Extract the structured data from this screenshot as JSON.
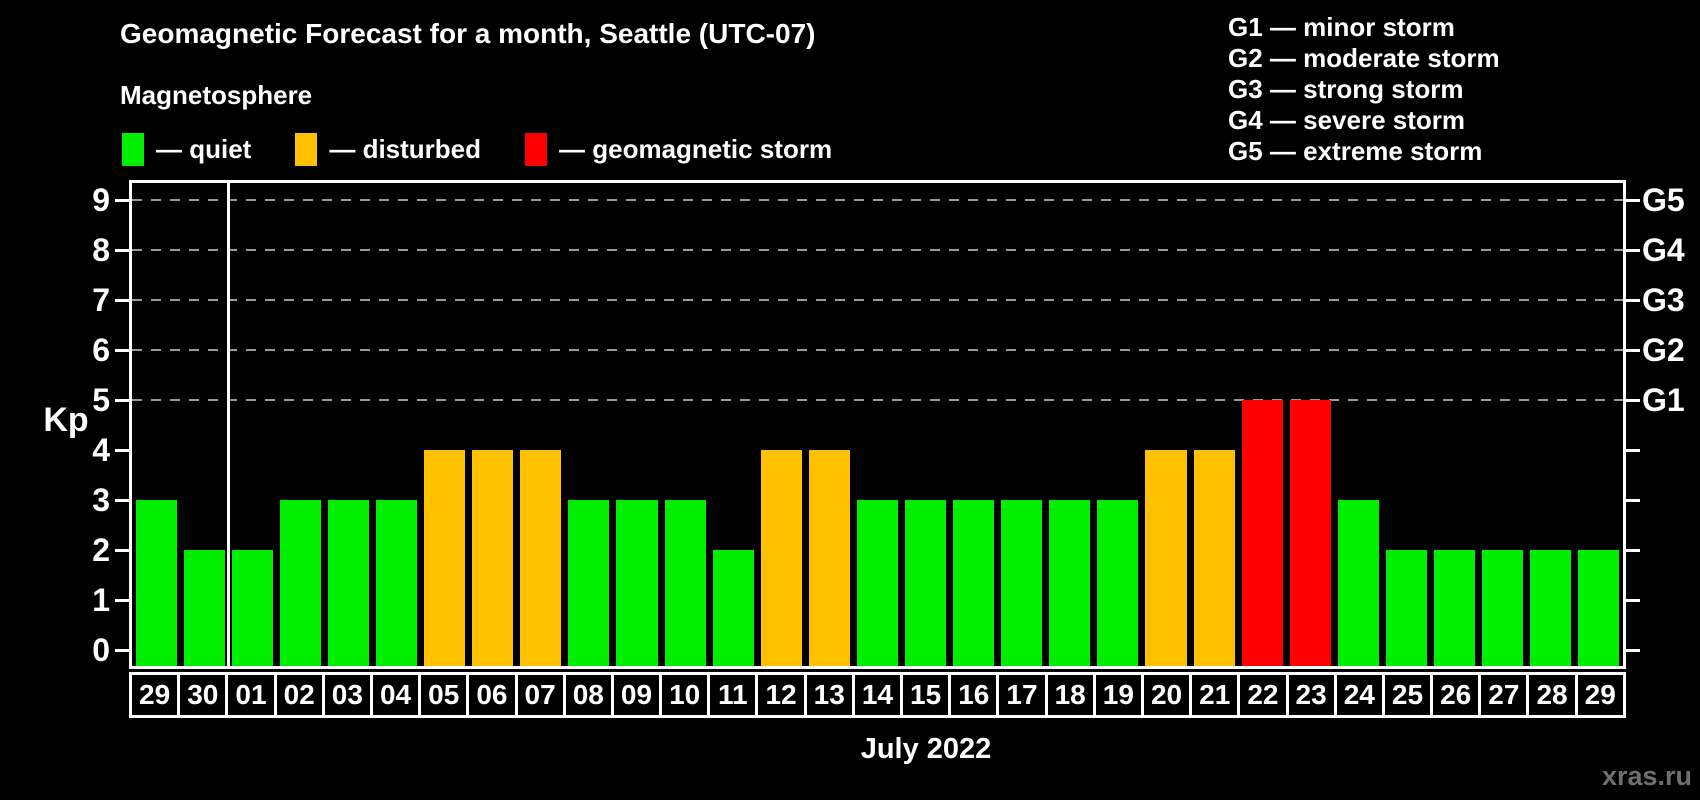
{
  "title": "Geomagnetic Forecast for a month, Seattle (UTC-07)",
  "subtitle": "Magnetosphere",
  "colors": {
    "quiet": "#00ee00",
    "disturbed": "#ffc000",
    "storm": "#ff0000",
    "background": "#000000",
    "axis": "#ffffff",
    "gridline": "#9a9a9a",
    "watermark_text": "#6f6f6f"
  },
  "legend": {
    "items": [
      {
        "key": "quiet",
        "label": "— quiet"
      },
      {
        "key": "disturbed",
        "label": "— disturbed"
      },
      {
        "key": "storm",
        "label": "— geomagnetic storm"
      }
    ]
  },
  "g_legend": [
    "G1 — minor storm",
    "G2 — moderate storm",
    "G3 — strong storm",
    "G4 — severe storm",
    "G5 — extreme storm"
  ],
  "axis": {
    "kp_label": "Kp",
    "y_ticks": [
      0,
      1,
      2,
      3,
      4,
      5,
      6,
      7,
      8,
      9
    ]
  },
  "chart_data": {
    "type": "bar",
    "title": "Geomagnetic Forecast for a month, Seattle (UTC-07)",
    "xlabel": "July 2022",
    "ylabel": "Kp",
    "ylim": [
      0,
      9
    ],
    "grid": "dashed horizontal at Kp 5-9 only",
    "legend_position": "top",
    "categories": [
      "29",
      "30",
      "01",
      "02",
      "03",
      "04",
      "05",
      "06",
      "07",
      "08",
      "09",
      "10",
      "11",
      "12",
      "13",
      "14",
      "15",
      "16",
      "17",
      "18",
      "19",
      "20",
      "21",
      "22",
      "23",
      "24",
      "25",
      "26",
      "27",
      "28",
      "29"
    ],
    "values": [
      3,
      2,
      2,
      3,
      3,
      3,
      4,
      4,
      4,
      3,
      3,
      3,
      2,
      4,
      4,
      3,
      3,
      3,
      3,
      3,
      3,
      4,
      4,
      5,
      5,
      3,
      2,
      2,
      2,
      2,
      2
    ],
    "statuses": [
      "quiet",
      "quiet",
      "quiet",
      "quiet",
      "quiet",
      "quiet",
      "disturbed",
      "disturbed",
      "disturbed",
      "quiet",
      "quiet",
      "quiet",
      "quiet",
      "disturbed",
      "disturbed",
      "quiet",
      "quiet",
      "quiet",
      "quiet",
      "quiet",
      "quiet",
      "disturbed",
      "disturbed",
      "storm",
      "storm",
      "quiet",
      "quiet",
      "quiet",
      "quiet",
      "quiet",
      "quiet"
    ],
    "month_boundary_after_index": 1,
    "gridlines_kp": [
      5,
      6,
      7,
      8,
      9
    ],
    "right_axis": [
      {
        "kp": 5,
        "label": "G1"
      },
      {
        "kp": 6,
        "label": "G2"
      },
      {
        "kp": 7,
        "label": "G3"
      },
      {
        "kp": 8,
        "label": "G4"
      },
      {
        "kp": 9,
        "label": "G5"
      }
    ]
  },
  "footer": {
    "month_label": "July 2022",
    "watermark": "xras.ru"
  }
}
